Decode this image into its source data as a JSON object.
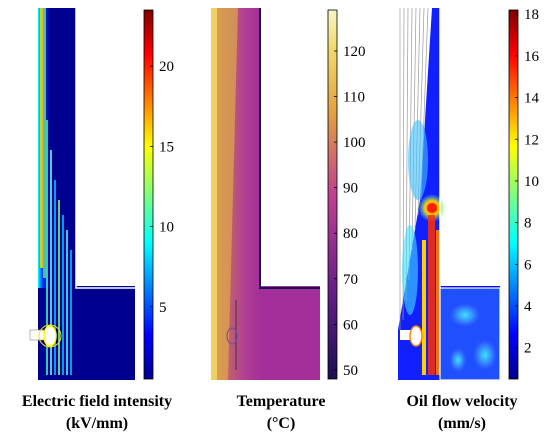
{
  "panels": [
    {
      "caption_line1": "Electric field intensity",
      "caption_line2": "(kV/mm)",
      "colormap": "jet",
      "colorbar_ticks": [
        "5",
        "10",
        "15",
        "20"
      ],
      "colorbar_range": [
        0.5,
        23.5
      ]
    },
    {
      "caption_line1": "Temperature",
      "caption_line2": "(°C)",
      "colormap": "parula-like",
      "colorbar_ticks": [
        "50",
        "60",
        "70",
        "80",
        "90",
        "100",
        "110",
        "120"
      ],
      "colorbar_range": [
        48,
        129
      ]
    },
    {
      "caption_line1": "Oil flow velocity",
      "caption_line2": "(mm/s)",
      "colormap": "jet",
      "colorbar_ticks": [
        "2",
        "4",
        "6",
        "8",
        "10",
        "12",
        "14",
        "16",
        "18"
      ],
      "colorbar_range": [
        0.5,
        18.2
      ]
    }
  ],
  "colors": {
    "jet_low": "#00008f",
    "jet_high": "#800000",
    "temp_low": "#1a0f55",
    "temp_mid": "#a3309a",
    "temp_high": "#f6f6c8"
  }
}
